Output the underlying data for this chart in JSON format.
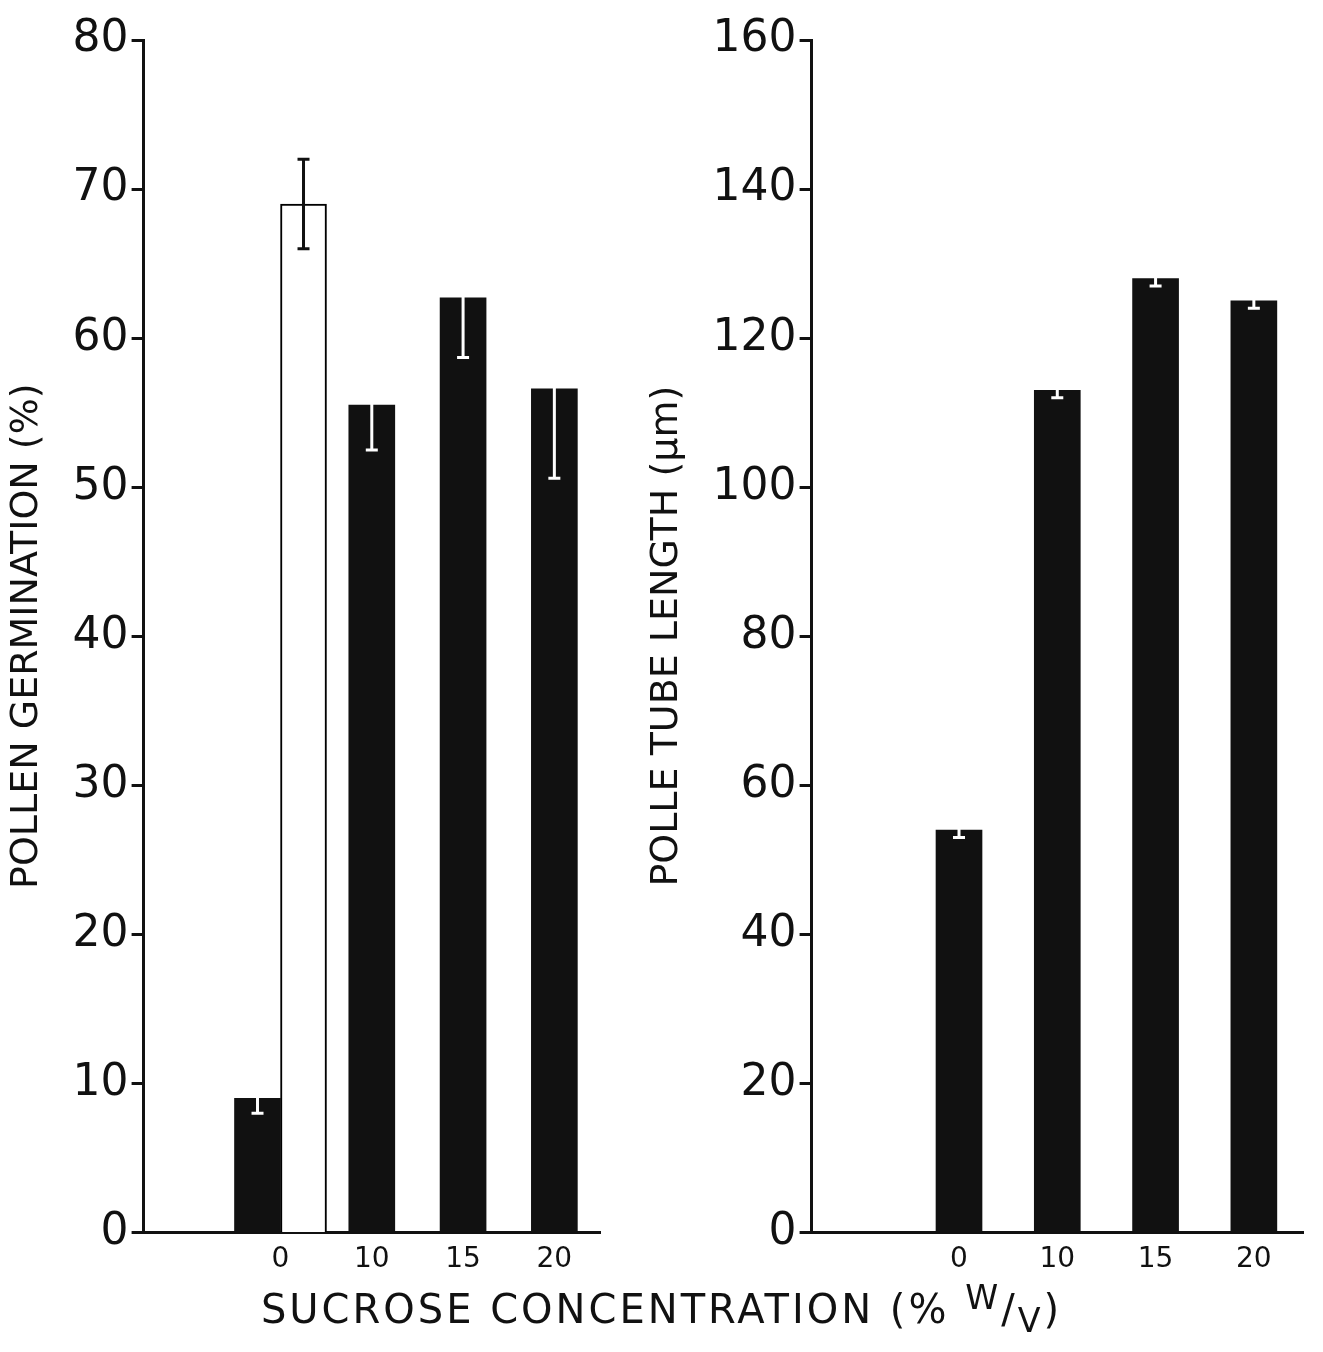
{
  "chart_data": [
    {
      "type": "bar",
      "ylabel": "POLLEN GERMINATION (%)",
      "xlabel": "SUCROSE CONCENTRATION (% $^{W}$/$_{V}$)",
      "categories": [
        null,
        "0",
        "10",
        "15",
        "20"
      ],
      "series": [
        {
          "color": "#111111",
          "values": [
            null,
            9,
            55.5,
            62.7,
            56.6
          ],
          "errors": [
            null,
            1,
            3,
            4,
            6
          ]
        },
        {
          "color": "#ffffff",
          "values": [
            null,
            69,
            null,
            null,
            null
          ],
          "errors": [
            null,
            3,
            null,
            null,
            null
          ]
        }
      ],
      "ylim": [
        0,
        80
      ],
      "yticks": [
        0,
        10,
        20,
        30,
        40,
        50,
        60,
        70,
        80
      ],
      "grid": false,
      "legend": false
    },
    {
      "type": "bar",
      "ylabel": "POLLE TUBE LENGTH (µm)",
      "categories": [
        null,
        "0",
        "10",
        "15",
        "20"
      ],
      "series": [
        {
          "color": "#111111",
          "values": [
            null,
            54,
            113,
            128,
            125
          ],
          "errors": [
            null,
            1,
            1,
            1,
            1
          ]
        }
      ],
      "ylim": [
        0,
        160
      ],
      "yticks": [
        0,
        20,
        40,
        60,
        80,
        100,
        120,
        140,
        160
      ],
      "grid": false,
      "legend": false
    }
  ]
}
